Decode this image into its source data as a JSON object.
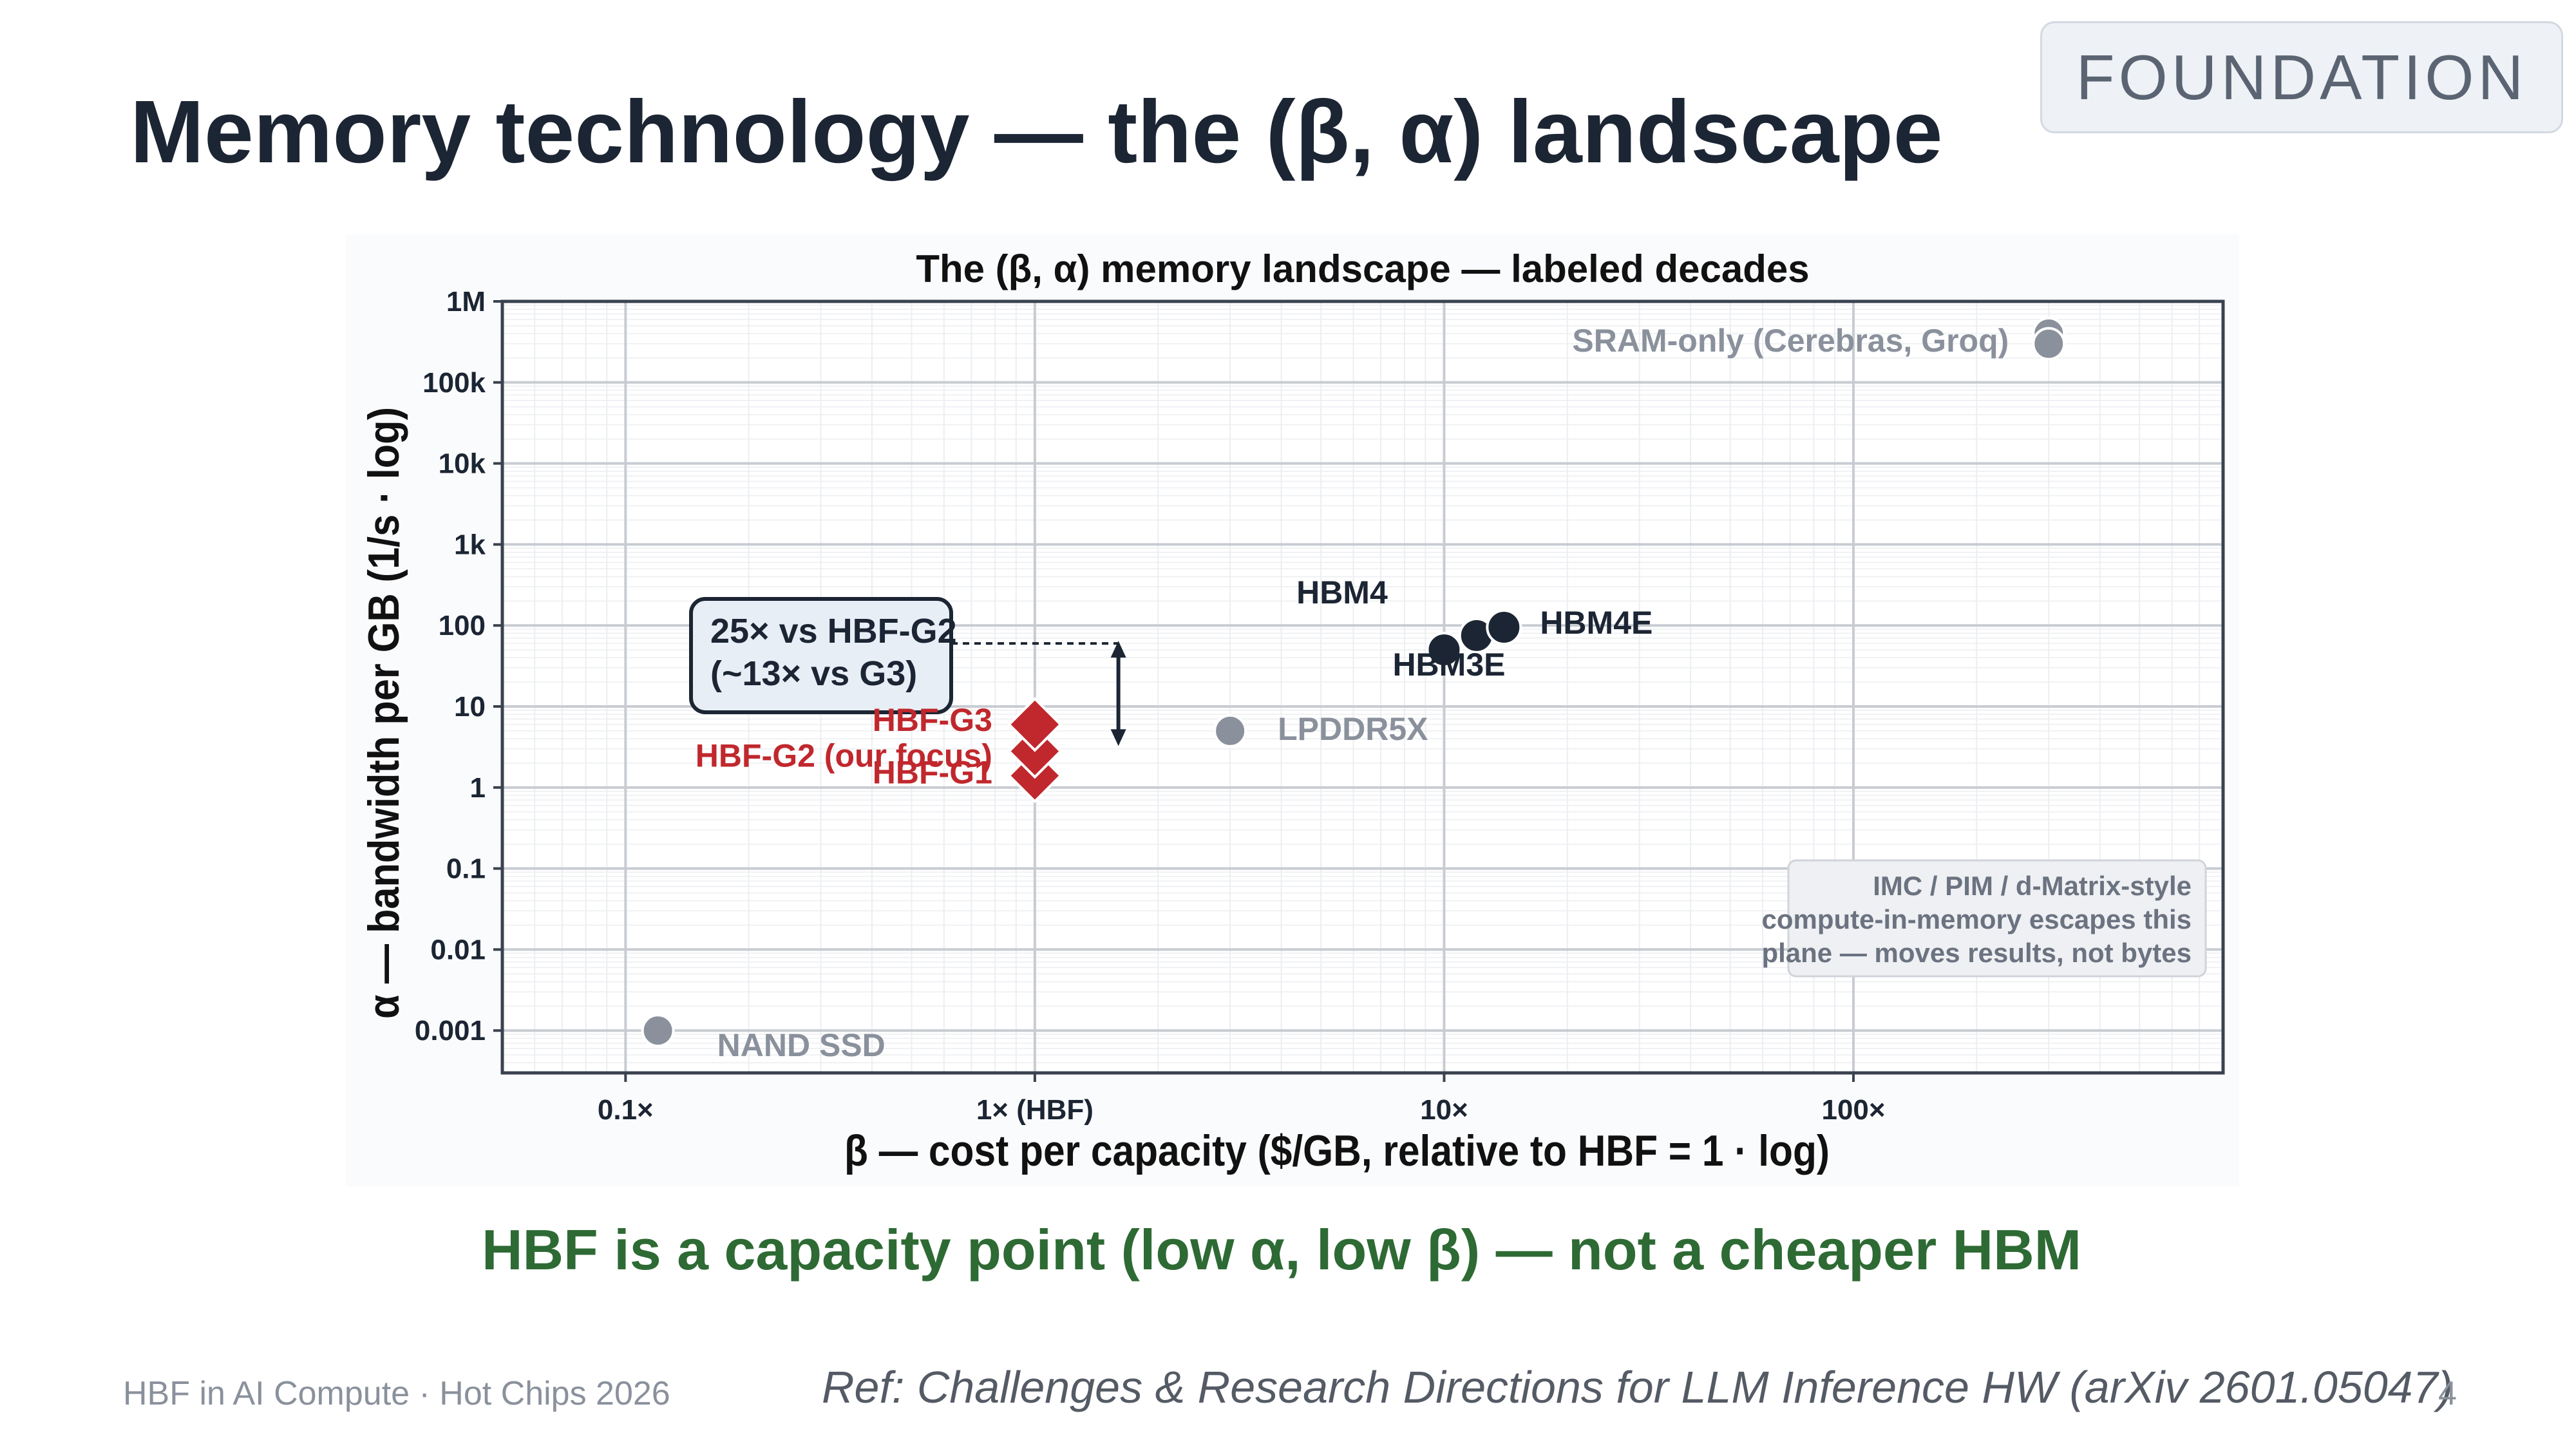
{
  "slide": {
    "badge": "FOUNDATION",
    "title": "Memory technology — the (β, α) landscape",
    "caption": "HBF is a capacity point (low α, low β) — not a cheaper HBM",
    "footer_left": "HBF in AI Compute · Hot Chips 2026",
    "footer_ref": "Ref: Challenges & Research Directions for LLM Inference HW (arXiv 2601.05047)",
    "page_number": "4"
  },
  "chart_data": {
    "type": "scatter",
    "title": "The (β, α) memory landscape  —  labeled decades",
    "xlabel": "β  —  cost per capacity  ($/GB, relative to HBF = 1 · log)",
    "ylabel": "α  —  bandwidth per GB  (1/s · log)",
    "x_scale": "log",
    "y_scale": "log",
    "xlim": [
      0.05,
      800
    ],
    "ylim": [
      0.0003,
      1000000
    ],
    "grid": true,
    "x_ticks": [
      {
        "value": 0.1,
        "label": "0.1×"
      },
      {
        "value": 1,
        "label": "1× (HBF)"
      },
      {
        "value": 10,
        "label": "10×"
      },
      {
        "value": 100,
        "label": "100×"
      }
    ],
    "y_ticks": [
      {
        "value": 0.001,
        "label": "0.001"
      },
      {
        "value": 0.01,
        "label": "0.01"
      },
      {
        "value": 0.1,
        "label": "0.1"
      },
      {
        "value": 1,
        "label": "1"
      },
      {
        "value": 10,
        "label": "10"
      },
      {
        "value": 100,
        "label": "100"
      },
      {
        "value": 1000,
        "label": "1k"
      },
      {
        "value": 10000,
        "label": "10k"
      },
      {
        "value": 100000,
        "label": "100k"
      },
      {
        "value": 1000000,
        "label": "1M"
      }
    ],
    "colors": {
      "hbm": "#1c2533",
      "hbf": "#c0282d",
      "other": "#8a919c",
      "axes": "#3a4250",
      "grid_major": "#c8ccd2",
      "grid_minor": "#eceef1"
    },
    "points": [
      {
        "name": "SRAM-only (Cerebras, Groq)",
        "x": 300,
        "y": 400000,
        "group": "other",
        "marker": "circle"
      },
      {
        "name": "SRAM-only (Cerebras, Groq)",
        "x": 300,
        "y": 300000,
        "group": "other",
        "marker": "circle"
      },
      {
        "name": "HBM4",
        "x": 12,
        "y": 75,
        "group": "hbm",
        "marker": "circle"
      },
      {
        "name": "HBM3E",
        "x": 10,
        "y": 50,
        "group": "hbm",
        "marker": "circle"
      },
      {
        "name": "HBM4E",
        "x": 14,
        "y": 95,
        "group": "hbm",
        "marker": "circle"
      },
      {
        "name": "LPDDR5X",
        "x": 3,
        "y": 5,
        "group": "other",
        "marker": "circle"
      },
      {
        "name": "HBF-G3",
        "x": 1,
        "y": 6,
        "group": "hbf",
        "marker": "diamond"
      },
      {
        "name": "HBF-G2  (our focus)",
        "x": 1,
        "y": 2.8,
        "group": "hbf",
        "marker": "diamond"
      },
      {
        "name": "HBF-G1",
        "x": 1,
        "y": 1.4,
        "group": "hbf",
        "marker": "diamond"
      },
      {
        "name": "NAND SSD",
        "x": 0.12,
        "y": 0.001,
        "group": "other",
        "marker": "circle"
      }
    ],
    "annotations": {
      "gap_box": [
        "25× vs HBF-G2",
        "(~13× vs G3)"
      ],
      "gap_arrow": {
        "x": 1.6,
        "from_y": 3.5,
        "to_y": 60
      },
      "note_box": [
        "IMC / PIM / d-Matrix-style",
        "compute-in-memory escapes this",
        "plane — moves results, not bytes"
      ]
    }
  }
}
